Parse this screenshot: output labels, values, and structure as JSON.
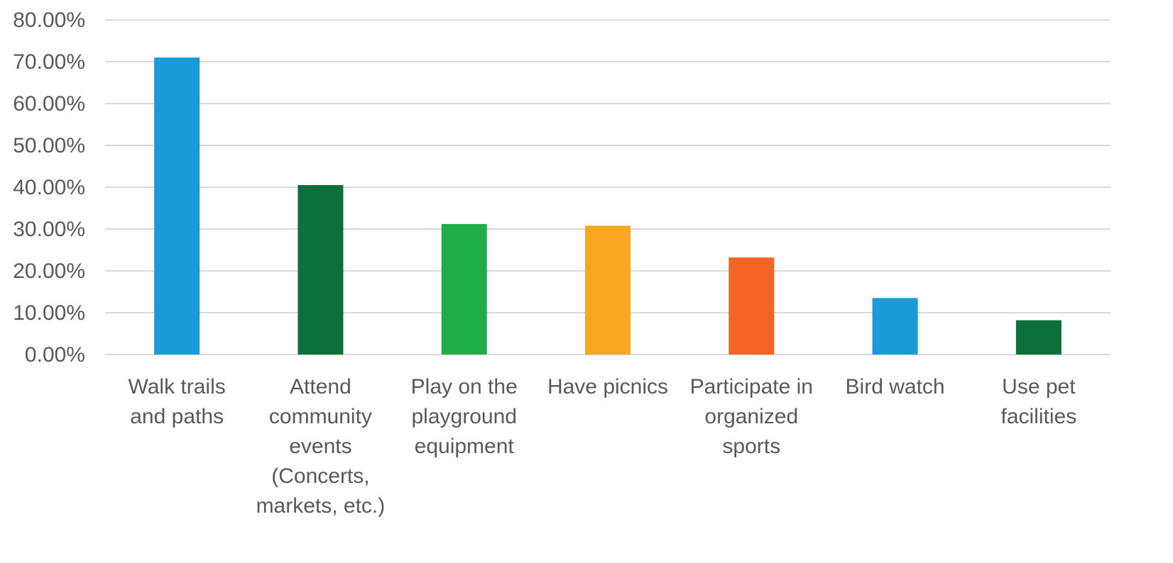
{
  "chart_data": {
    "type": "bar",
    "title": "",
    "xlabel": "",
    "ylabel": "",
    "ylim": [
      0,
      80
    ],
    "ytick_step": 10,
    "ytick_labels": [
      "0.00%",
      "10.00%",
      "20.00%",
      "30.00%",
      "40.00%",
      "50.00%",
      "60.00%",
      "70.00%",
      "80.00%"
    ],
    "grid": true,
    "legend": "none",
    "categories": [
      [
        "Walk trails",
        "and paths"
      ],
      [
        "Attend",
        "community",
        "events",
        "(Concerts,",
        "markets, etc.)"
      ],
      [
        "Play on the",
        "playground",
        "equipment"
      ],
      [
        "Have picnics"
      ],
      [
        "Participate in",
        "organized",
        "sports"
      ],
      [
        "Bird watch"
      ],
      [
        "Use pet",
        "facilities"
      ]
    ],
    "values": [
      71.0,
      40.5,
      31.2,
      30.8,
      23.2,
      13.5,
      8.2
    ],
    "colors": [
      "#1a9ad7",
      "#0d6f3c",
      "#1fad4b",
      "#f7a721",
      "#f26527",
      "#1a9ad7",
      "#0d6f3c"
    ]
  }
}
